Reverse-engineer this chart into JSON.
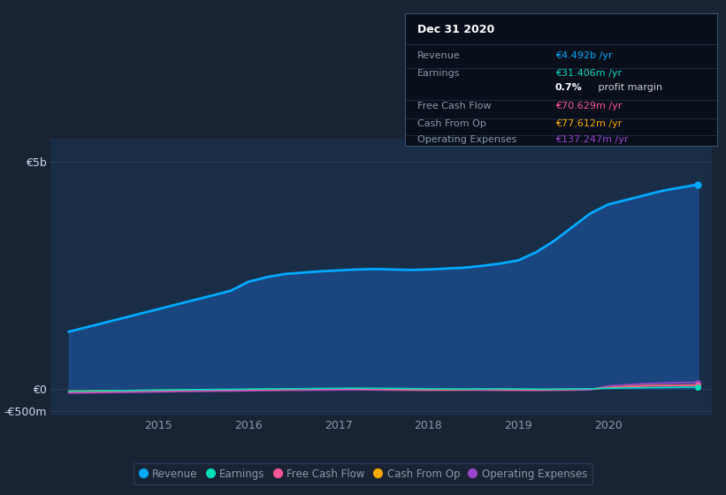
{
  "background_color": "#1a2333",
  "plot_bg_color": "#1a2d47",
  "grid_color": "#2d4060",
  "text_color": "#8899aa",
  "years_x": [
    2014.0,
    2014.2,
    2014.4,
    2014.6,
    2014.8,
    2015.0,
    2015.2,
    2015.4,
    2015.6,
    2015.8,
    2016.0,
    2016.2,
    2016.4,
    2016.6,
    2016.8,
    2017.0,
    2017.2,
    2017.4,
    2017.6,
    2017.8,
    2018.0,
    2018.2,
    2018.4,
    2018.6,
    2018.8,
    2019.0,
    2019.2,
    2019.4,
    2019.6,
    2019.8,
    2020.0,
    2020.2,
    2020.4,
    2020.6,
    2020.8,
    2021.0
  ],
  "revenue": [
    1250000000.0,
    1350000000.0,
    1450000000.0,
    1550000000.0,
    1650000000.0,
    1750000000.0,
    1850000000.0,
    1950000000.0,
    2050000000.0,
    2150000000.0,
    2350000000.0,
    2450000000.0,
    2520000000.0,
    2550000000.0,
    2580000000.0,
    2600000000.0,
    2620000000.0,
    2630000000.0,
    2620000000.0,
    2610000000.0,
    2620000000.0,
    2640000000.0,
    2660000000.0,
    2700000000.0,
    2750000000.0,
    2820000000.0,
    3000000000.0,
    3250000000.0,
    3550000000.0,
    3850000000.0,
    4050000000.0,
    4150000000.0,
    4250000000.0,
    4350000000.0,
    4420000000.0,
    4492000000.0
  ],
  "earnings": [
    -60000000.0,
    -55000000.0,
    -50000000.0,
    -45000000.0,
    -40000000.0,
    -35000000.0,
    -30000000.0,
    -25000000.0,
    -22000000.0,
    -18000000.0,
    -12000000.0,
    -8000000.0,
    -5000000.0,
    -3000000.0,
    2000000.0,
    5000000.0,
    8000000.0,
    6000000.0,
    3000000.0,
    -2000000.0,
    -5000000.0,
    -8000000.0,
    -10000000.0,
    -8000000.0,
    -5000000.0,
    -10000000.0,
    -12000000.0,
    -15000000.0,
    -8000000.0,
    -5000000.0,
    5000000.0,
    12000000.0,
    18000000.0,
    22000000.0,
    28000000.0,
    31400000.0
  ],
  "free_cash_flow": [
    -80000000.0,
    -75000000.0,
    -70000000.0,
    -65000000.0,
    -60000000.0,
    -55000000.0,
    -50000000.0,
    -45000000.0,
    -42000000.0,
    -38000000.0,
    -30000000.0,
    -25000000.0,
    -22000000.0,
    -18000000.0,
    -15000000.0,
    -12000000.0,
    -10000000.0,
    -12000000.0,
    -15000000.0,
    -18000000.0,
    -20000000.0,
    -22000000.0,
    -18000000.0,
    -15000000.0,
    -18000000.0,
    -22000000.0,
    -25000000.0,
    -20000000.0,
    -15000000.0,
    -10000000.0,
    15000000.0,
    35000000.0,
    55000000.0,
    62000000.0,
    67000000.0,
    70600000.0
  ],
  "cash_from_op": [
    -55000000.0,
    -52000000.0,
    -48000000.0,
    -45000000.0,
    -42000000.0,
    -38000000.0,
    -35000000.0,
    -32000000.0,
    -30000000.0,
    -28000000.0,
    -25000000.0,
    -22000000.0,
    -18000000.0,
    -15000000.0,
    -12000000.0,
    -10000000.0,
    -12000000.0,
    -15000000.0,
    -18000000.0,
    -22000000.0,
    -25000000.0,
    -28000000.0,
    -22000000.0,
    -18000000.0,
    -22000000.0,
    -25000000.0,
    -28000000.0,
    -22000000.0,
    -18000000.0,
    -12000000.0,
    20000000.0,
    45000000.0,
    62000000.0,
    68000000.0,
    74000000.0,
    77600000.0
  ],
  "op_expenses": [
    -100000000.0,
    -95000000.0,
    -90000000.0,
    -85000000.0,
    -80000000.0,
    -75000000.0,
    -68000000.0,
    -62000000.0,
    -58000000.0,
    -55000000.0,
    -50000000.0,
    -45000000.0,
    -40000000.0,
    -38000000.0,
    -35000000.0,
    -32000000.0,
    -30000000.0,
    -32000000.0,
    -35000000.0,
    -38000000.0,
    -40000000.0,
    -38000000.0,
    -35000000.0,
    -38000000.0,
    -40000000.0,
    -42000000.0,
    -45000000.0,
    -40000000.0,
    -35000000.0,
    -30000000.0,
    55000000.0,
    85000000.0,
    105000000.0,
    120000000.0,
    130000000.0,
    137200000.0
  ],
  "ylim": [
    -600000000.0,
    5500000000.0
  ],
  "yticks": [
    -500000000.0,
    0,
    5000000000.0
  ],
  "ytick_labels": [
    "-€500m",
    "€0",
    "€5b"
  ],
  "xlim": [
    2013.8,
    2021.15
  ],
  "xticks": [
    2015,
    2016,
    2017,
    2018,
    2019,
    2020
  ],
  "revenue_color": "#00aaff",
  "revenue_fill_color": "#1a4a8a",
  "earnings_color": "#00ddbb",
  "free_cash_flow_color": "#ff5599",
  "cash_from_op_color": "#ffaa00",
  "op_expenses_color": "#9944cc",
  "legend_labels": [
    "Revenue",
    "Earnings",
    "Free Cash Flow",
    "Cash From Op",
    "Operating Expenses"
  ],
  "legend_colors": [
    "#00aaff",
    "#00ddbb",
    "#ff5599",
    "#ffaa00",
    "#9944cc"
  ],
  "info_box": {
    "title": "Dec 31 2020",
    "title_color": "#ffffff",
    "bg_color": "#080e1a",
    "border_color": "#3a5070",
    "rows": [
      {
        "label": "Revenue",
        "value": "€4.492b /yr",
        "value_color": "#00aaff"
      },
      {
        "label": "Earnings",
        "value": "€31.406m /yr",
        "value_color": "#00ddbb"
      },
      {
        "label": "",
        "value": "0.7% profit margin",
        "value_color": "#dddddd"
      },
      {
        "label": "Free Cash Flow",
        "value": "€70.629m /yr",
        "value_color": "#ff5599"
      },
      {
        "label": "Cash From Op",
        "value": "€77.612m /yr",
        "value_color": "#ffaa00"
      },
      {
        "label": "Operating Expenses",
        "value": "€137.247m /yr",
        "value_color": "#9944cc"
      }
    ]
  }
}
